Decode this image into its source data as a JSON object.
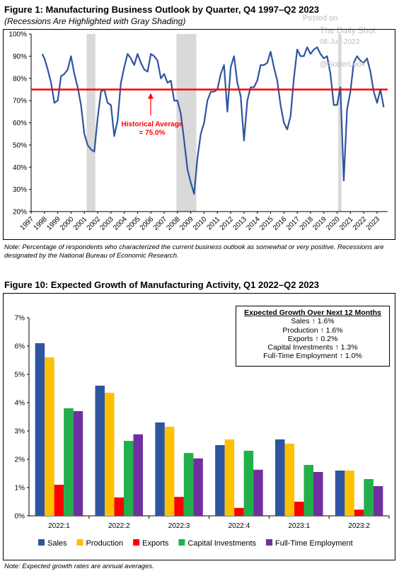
{
  "watermark": {
    "line1": "Posted on",
    "line2": "The Daily Shot",
    "line3": "08-Jun-2023",
    "line4": "@SoberLook"
  },
  "figure1": {
    "title": "Figure 1: Manufacturing Business Outlook by Quarter, Q4 1997–Q2 2023",
    "subtitle": "(Recessions Are Highlighted with Gray Shading)",
    "note": "Note: Percentage of respondents who characterized the current business outlook as somewhat or very positive. Recessions are designated by the National Bureau of Economic Research.",
    "annotation_line1": "Historical Average",
    "annotation_line2": "= 75.0%",
    "colors": {
      "line": "#2e55a0",
      "average": "#ff0000",
      "recession": "#d9d9d9"
    }
  },
  "figure10": {
    "title": "Figure 10: Expected Growth of Manufacturing Activity, Q1 2022–Q2 2023",
    "note": "Note: Expected growth rates are annual averages.",
    "box_title": "Expected Growth Over Next 12 Months",
    "box_lines": [
      "Sales ↑ 1.6%",
      "Production ↑ 1.6%",
      "Exports ↑ 0.2%",
      "Capital Investments ↑ 1.3%",
      "Full-Time Employment ↑ 1.0%"
    ]
  },
  "chart_data": [
    {
      "type": "line",
      "title": "Figure 1: Manufacturing Business Outlook by Quarter, Q4 1997–Q2 2023",
      "x_ticks": [
        "1997",
        "1998",
        "1999",
        "2000",
        "2001",
        "2002",
        "2003",
        "2004",
        "2005",
        "2006",
        "2007",
        "2008",
        "2009",
        "2010",
        "2011",
        "2012",
        "2013",
        "2014",
        "2015",
        "2016",
        "2017",
        "2018",
        "2019",
        "2020",
        "2021",
        "2022",
        "2023"
      ],
      "ylim": [
        20,
        100
      ],
      "y_ticks": [
        "20%",
        "30%",
        "40%",
        "50%",
        "60%",
        "70%",
        "80%",
        "90%",
        "100%"
      ],
      "average": 75.0,
      "recessions": [
        [
          2001.17,
          2001.83
        ],
        [
          2007.92,
          2009.42
        ],
        [
          2020.08,
          2020.33
        ]
      ],
      "series": [
        {
          "values": [
            [
              1997.83,
              91
            ],
            [
              1998.0,
              89
            ],
            [
              1998.25,
              84
            ],
            [
              1998.5,
              78
            ],
            [
              1998.75,
              69
            ],
            [
              1999.0,
              70
            ],
            [
              1999.25,
              81
            ],
            [
              1999.5,
              82
            ],
            [
              1999.75,
              84
            ],
            [
              2000.0,
              90
            ],
            [
              2000.25,
              82
            ],
            [
              2000.5,
              76
            ],
            [
              2000.75,
              68
            ],
            [
              2001.0,
              55
            ],
            [
              2001.25,
              50
            ],
            [
              2001.5,
              48
            ],
            [
              2001.75,
              47
            ],
            [
              2002.0,
              62
            ],
            [
              2002.25,
              74
            ],
            [
              2002.5,
              75
            ],
            [
              2002.75,
              69
            ],
            [
              2003.0,
              68
            ],
            [
              2003.25,
              54
            ],
            [
              2003.5,
              61
            ],
            [
              2003.75,
              78
            ],
            [
              2004.0,
              85
            ],
            [
              2004.25,
              91
            ],
            [
              2004.5,
              89
            ],
            [
              2004.75,
              86
            ],
            [
              2005.0,
              91
            ],
            [
              2005.25,
              87
            ],
            [
              2005.5,
              84
            ],
            [
              2005.75,
              83
            ],
            [
              2006.0,
              91
            ],
            [
              2006.25,
              90
            ],
            [
              2006.5,
              88
            ],
            [
              2006.75,
              80
            ],
            [
              2007.0,
              82
            ],
            [
              2007.25,
              78
            ],
            [
              2007.5,
              79
            ],
            [
              2007.75,
              70
            ],
            [
              2008.0,
              70
            ],
            [
              2008.25,
              64
            ],
            [
              2008.5,
              52
            ],
            [
              2008.75,
              39
            ],
            [
              2009.0,
              33
            ],
            [
              2009.25,
              28
            ],
            [
              2009.5,
              44
            ],
            [
              2009.75,
              55
            ],
            [
              2010.0,
              60
            ],
            [
              2010.25,
              70
            ],
            [
              2010.5,
              74
            ],
            [
              2010.75,
              74
            ],
            [
              2011.0,
              75
            ],
            [
              2011.25,
              82
            ],
            [
              2011.5,
              86
            ],
            [
              2011.75,
              65
            ],
            [
              2012.0,
              85
            ],
            [
              2012.25,
              90
            ],
            [
              2012.5,
              78
            ],
            [
              2012.75,
              72
            ],
            [
              2013.0,
              52
            ],
            [
              2013.25,
              70
            ],
            [
              2013.5,
              76
            ],
            [
              2013.75,
              76
            ],
            [
              2014.0,
              79
            ],
            [
              2014.25,
              86
            ],
            [
              2014.5,
              86
            ],
            [
              2014.75,
              87
            ],
            [
              2015.0,
              92
            ],
            [
              2015.25,
              85
            ],
            [
              2015.5,
              79
            ],
            [
              2015.75,
              68
            ],
            [
              2016.0,
              60
            ],
            [
              2016.25,
              57
            ],
            [
              2016.5,
              63
            ],
            [
              2016.75,
              80
            ],
            [
              2017.0,
              93
            ],
            [
              2017.25,
              90
            ],
            [
              2017.5,
              90
            ],
            [
              2017.75,
              94
            ],
            [
              2018.0,
              91
            ],
            [
              2018.25,
              93
            ],
            [
              2018.5,
              94
            ],
            [
              2018.75,
              91
            ],
            [
              2019.0,
              89
            ],
            [
              2019.25,
              90
            ],
            [
              2019.5,
              82
            ],
            [
              2019.75,
              68
            ],
            [
              2020.0,
              68
            ],
            [
              2020.25,
              76
            ],
            [
              2020.5,
              34
            ],
            [
              2020.75,
              66
            ],
            [
              2021.0,
              74
            ],
            [
              2021.25,
              87
            ],
            [
              2021.5,
              90
            ],
            [
              2021.75,
              88
            ],
            [
              2022.0,
              87
            ],
            [
              2022.25,
              89
            ],
            [
              2022.5,
              83
            ],
            [
              2022.75,
              74
            ],
            [
              2023.0,
              69
            ],
            [
              2023.25,
              75
            ],
            [
              2023.5,
              67
            ]
          ]
        }
      ]
    },
    {
      "type": "bar",
      "title": "Figure 10: Expected Growth of Manufacturing Activity, Q1 2022–Q2 2023",
      "categories": [
        "2022:1",
        "2022:2",
        "2022:3",
        "2022:4",
        "2023:1",
        "2023:2"
      ],
      "ylim": [
        0,
        7
      ],
      "y_ticks": [
        "0%",
        "1%",
        "2%",
        "3%",
        "4%",
        "5%",
        "6%",
        "7%"
      ],
      "legend_placement": "bottom",
      "series": [
        {
          "name": "Sales",
          "color": "#2e55a0",
          "values": [
            6.1,
            4.6,
            3.3,
            2.5,
            2.7,
            1.6
          ]
        },
        {
          "name": "Production",
          "color": "#ffc000",
          "values": [
            5.6,
            4.35,
            3.15,
            2.7,
            2.55,
            1.6
          ]
        },
        {
          "name": "Exports",
          "color": "#ff0000",
          "values": [
            1.1,
            0.65,
            0.67,
            0.28,
            0.5,
            0.22
          ]
        },
        {
          "name": "Capital Investments",
          "color": "#22b04c",
          "values": [
            3.8,
            2.65,
            2.22,
            2.3,
            1.8,
            1.3
          ]
        },
        {
          "name": "Full-Time Employment",
          "color": "#7030a0",
          "values": [
            3.7,
            2.88,
            2.03,
            1.63,
            1.55,
            1.05
          ]
        }
      ]
    }
  ]
}
